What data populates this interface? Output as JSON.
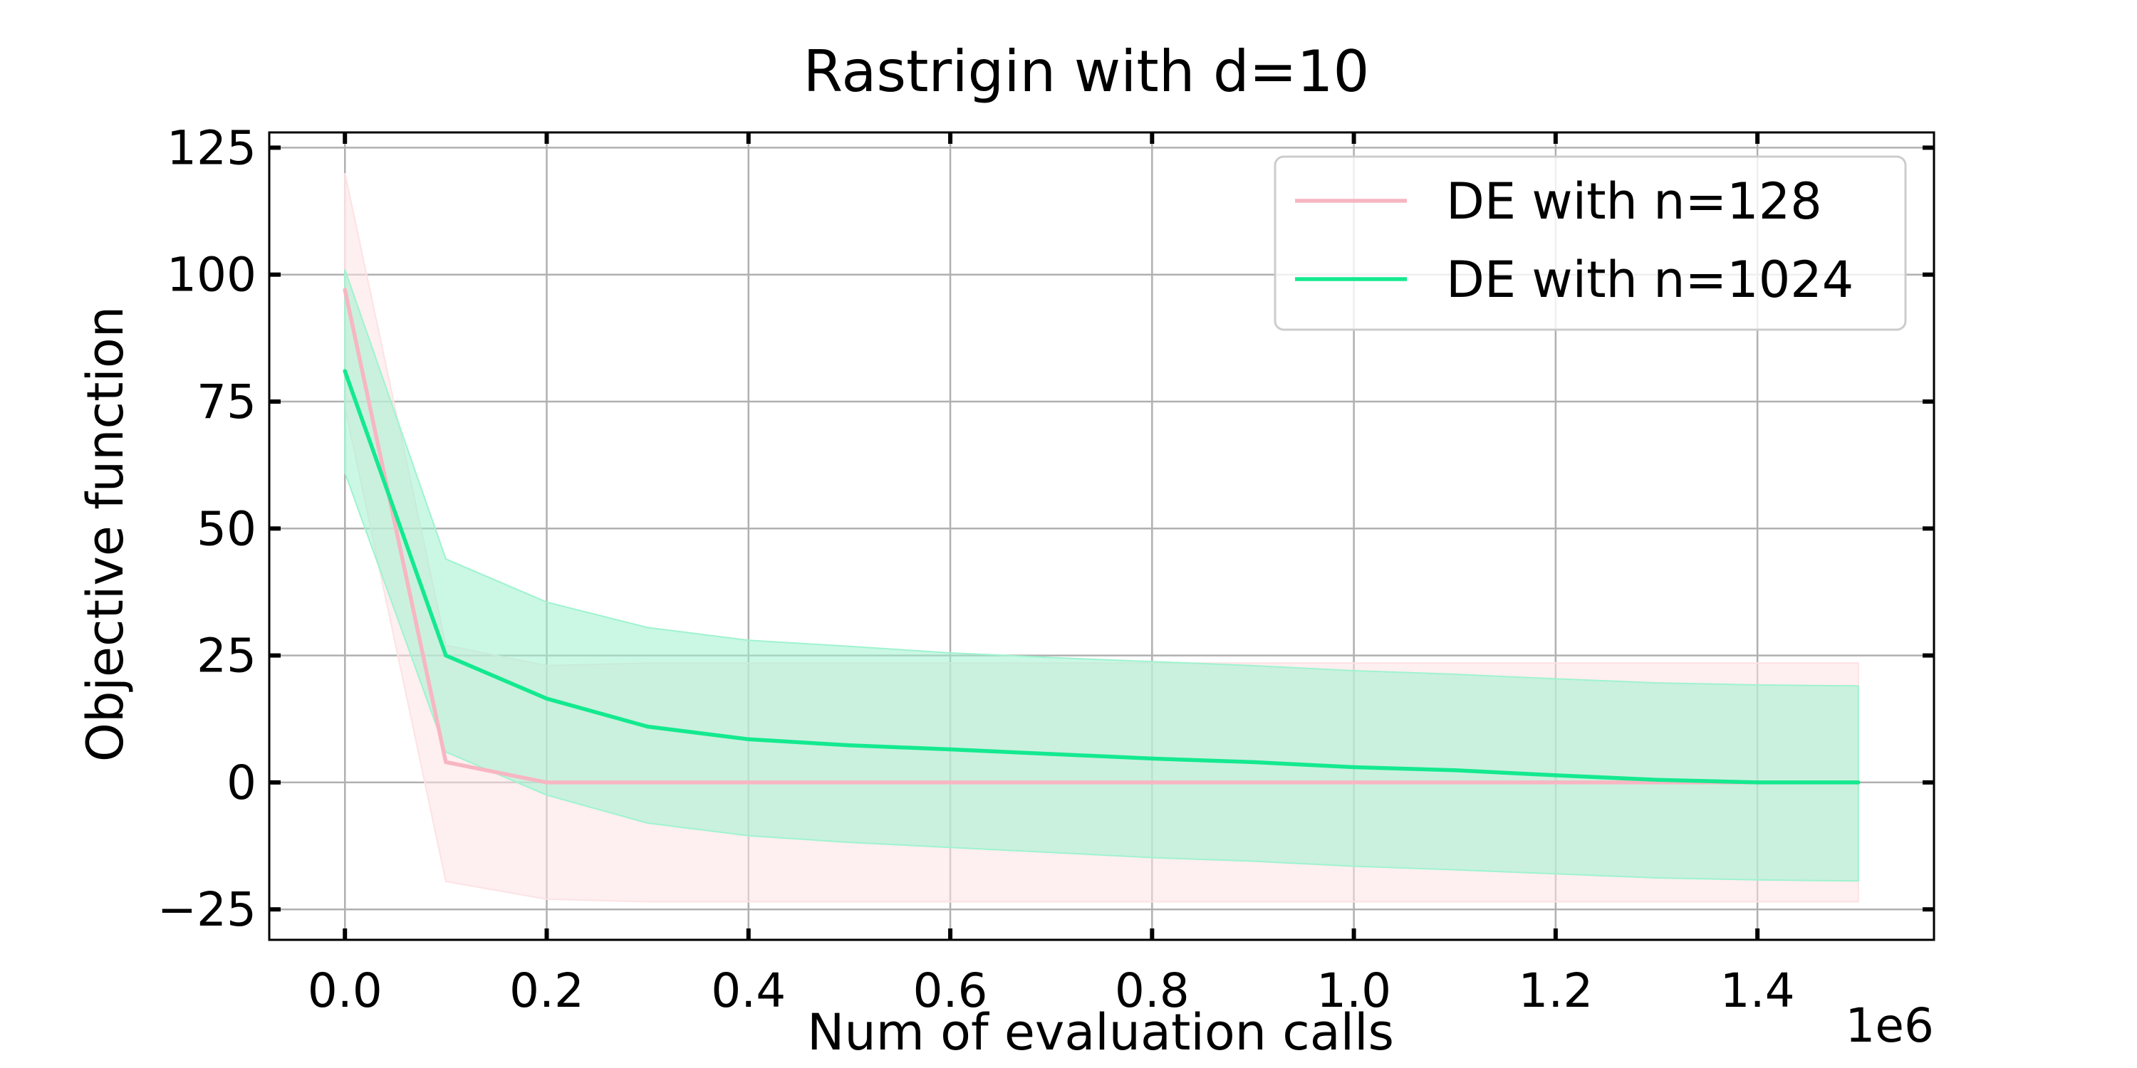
{
  "chart_data": {
    "type": "line",
    "title": "Rastrigin with d=10",
    "xlabel": "Num of evaluation calls",
    "ylabel": "Objective function",
    "x_offset_label": "1e6",
    "xlim": [
      -0.075,
      1.575
    ],
    "ylim": [
      -31,
      128
    ],
    "xticks": [
      0.0,
      0.2,
      0.4,
      0.6,
      0.8,
      1.0,
      1.2,
      1.4
    ],
    "xtick_labels": [
      "0.0",
      "0.2",
      "0.4",
      "0.6",
      "0.8",
      "1.0",
      "1.2",
      "1.4"
    ],
    "yticks": [
      -25,
      0,
      25,
      50,
      75,
      100,
      125
    ],
    "ytick_labels": [
      "−25",
      "0",
      "25",
      "50",
      "75",
      "100",
      "125"
    ],
    "grid": true,
    "legend_position": "top-right",
    "x": [
      0.0,
      0.1,
      0.2,
      0.3,
      0.4,
      0.5,
      0.6,
      0.7,
      0.8,
      0.9,
      1.0,
      1.1,
      1.2,
      1.3,
      1.4,
      1.5
    ],
    "series": [
      {
        "name": "DE with n=128",
        "color": "#f7b6c2",
        "band_color": "#fde2e4",
        "values": [
          97,
          4,
          0,
          0,
          0,
          0,
          0,
          0,
          0,
          0,
          0,
          0,
          0,
          0,
          0,
          0
        ],
        "upper": [
          120,
          27,
          23,
          23.5,
          23.5,
          23.5,
          23.5,
          23.5,
          23.5,
          23.5,
          23.5,
          23.5,
          23.5,
          23.5,
          23.5,
          23.5
        ],
        "lower": [
          74,
          -19.5,
          -23,
          -23.5,
          -23.5,
          -23.5,
          -23.5,
          -23.5,
          -23.5,
          -23.5,
          -23.5,
          -23.5,
          -23.5,
          -23.5,
          -23.5,
          -23.5
        ]
      },
      {
        "name": "DE with n=1024",
        "color": "#14e98f",
        "band_color": "#9ff3cf",
        "values": [
          81,
          25,
          16.5,
          11,
          8.5,
          7.3,
          6.5,
          5.6,
          4.7,
          4,
          3,
          2.4,
          1.4,
          0.5,
          0,
          0
        ],
        "upper": [
          101,
          44,
          35.5,
          30.5,
          28,
          26.8,
          25.5,
          24.6,
          23.8,
          23,
          22,
          21.3,
          20.4,
          19.6,
          19.2,
          19
        ],
        "lower": [
          61,
          6,
          -2.5,
          -8,
          -10.5,
          -11.8,
          -12.8,
          -13.8,
          -14.8,
          -15.5,
          -16.5,
          -17.2,
          -18,
          -18.8,
          -19.2,
          -19.4
        ]
      }
    ]
  }
}
